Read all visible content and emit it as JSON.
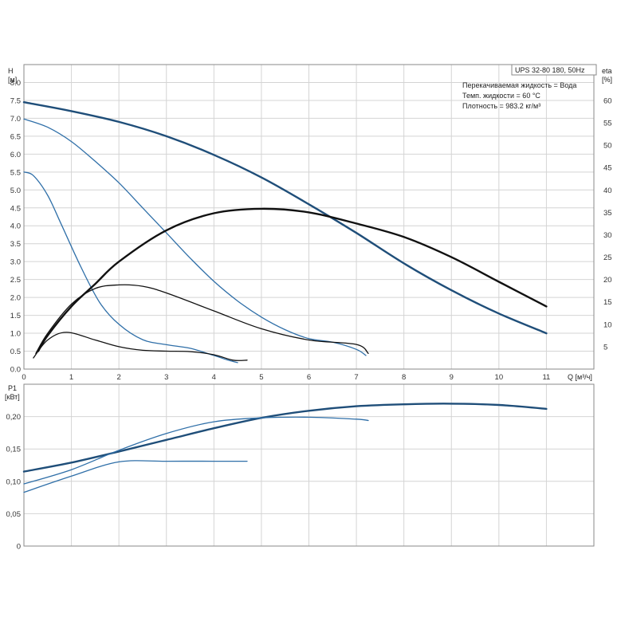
{
  "chart_data": [
    {
      "type": "line",
      "panel": "head-efficiency",
      "title_box": "UPS 32-80 180, 50Hz",
      "notes": [
        "Перекачиваемая жидкость = Вода",
        "Темп. жидкости = 60 °C",
        "Плотность = 983.2 кг/м³"
      ],
      "ylabel": [
        "H",
        "[м]"
      ],
      "y2label": [
        "eta",
        "[%]"
      ],
      "xlabel": "Q [м³/ч]",
      "xlim": [
        0,
        12
      ],
      "ylim": [
        0,
        8.5
      ],
      "y2lim": [
        0,
        68
      ],
      "xticks": [
        "0",
        "1",
        "2",
        "3",
        "4",
        "5",
        "6",
        "7",
        "8",
        "9",
        "10",
        "11"
      ],
      "yticks": [
        "0.0",
        "0.5",
        "1.0",
        "1.5",
        "2.0",
        "2.5",
        "3.0",
        "3.5",
        "4.0",
        "4.5",
        "5.0",
        "5.5",
        "6.0",
        "6.5",
        "7.0",
        "7.5",
        "8.0"
      ],
      "y2ticks": [
        "5",
        "10",
        "15",
        "20",
        "25",
        "30",
        "35",
        "40",
        "45",
        "50",
        "55",
        "60"
      ],
      "grid": true,
      "series": [
        {
          "axis": "H",
          "color": "#1f4e79",
          "width": 2.4,
          "points": [
            [
              0,
              7.45
            ],
            [
              1,
              7.2
            ],
            [
              2,
              6.9
            ],
            [
              3,
              6.5
            ],
            [
              4,
              5.98
            ],
            [
              5,
              5.35
            ],
            [
              6,
              4.6
            ],
            [
              7,
              3.8
            ],
            [
              8,
              2.95
            ],
            [
              9,
              2.2
            ],
            [
              10,
              1.55
            ],
            [
              11,
              1.0
            ]
          ]
        },
        {
          "axis": "H",
          "color": "#2f6fa8",
          "width": 1.3,
          "points": [
            [
              0,
              6.98
            ],
            [
              0.5,
              6.75
            ],
            [
              1,
              6.35
            ],
            [
              1.5,
              5.8
            ],
            [
              2,
              5.2
            ],
            [
              2.5,
              4.5
            ],
            [
              3,
              3.8
            ],
            [
              3.5,
              3.1
            ],
            [
              4,
              2.45
            ],
            [
              4.5,
              1.9
            ],
            [
              5,
              1.45
            ],
            [
              5.5,
              1.1
            ],
            [
              6,
              0.85
            ],
            [
              6.5,
              0.75
            ],
            [
              7,
              0.55
            ],
            [
              7.2,
              0.38
            ]
          ]
        },
        {
          "axis": "H",
          "color": "#2f6fa8",
          "width": 1.3,
          "points": [
            [
              0,
              5.5
            ],
            [
              0.2,
              5.4
            ],
            [
              0.5,
              4.85
            ],
            [
              0.8,
              4.0
            ],
            [
              1.2,
              2.85
            ],
            [
              1.6,
              1.85
            ],
            [
              2,
              1.25
            ],
            [
              2.5,
              0.82
            ],
            [
              3,
              0.68
            ],
            [
              3.5,
              0.58
            ],
            [
              4,
              0.38
            ],
            [
              4.3,
              0.25
            ],
            [
              4.5,
              0.18
            ]
          ]
        },
        {
          "axis": "eta",
          "color": "#111111",
          "width": 2.4,
          "points": [
            [
              0.3,
              4
            ],
            [
              0.5,
              7.5
            ],
            [
              1,
              14
            ],
            [
              1.5,
              19
            ],
            [
              2,
              24
            ],
            [
              3,
              31
            ],
            [
              4,
              34.8
            ],
            [
              5,
              35.8
            ],
            [
              6,
              35
            ],
            [
              7,
              32.5
            ],
            [
              8,
              29.5
            ],
            [
              9,
              25
            ],
            [
              10,
              19.5
            ],
            [
              11,
              14
            ]
          ]
        },
        {
          "axis": "eta",
          "color": "#111111",
          "width": 1.3,
          "points": [
            [
              0.25,
              3.5
            ],
            [
              0.5,
              8
            ],
            [
              1,
              14.5
            ],
            [
              1.5,
              18
            ],
            [
              2,
              18.8
            ],
            [
              2.5,
              18.5
            ],
            [
              3,
              17
            ],
            [
              4,
              13
            ],
            [
              5,
              9
            ],
            [
              6,
              6.5
            ],
            [
              7,
              5.5
            ],
            [
              7.25,
              3.5
            ]
          ]
        },
        {
          "axis": "eta",
          "color": "#111111",
          "width": 1.3,
          "points": [
            [
              0.2,
              2.5
            ],
            [
              0.5,
              6.5
            ],
            [
              0.9,
              8.2
            ],
            [
              1.5,
              6.5
            ],
            [
              2,
              5
            ],
            [
              2.5,
              4.2
            ],
            [
              3,
              4
            ],
            [
              3.5,
              3.9
            ],
            [
              4,
              3.2
            ],
            [
              4.4,
              2.0
            ],
            [
              4.7,
              2.0
            ]
          ]
        }
      ]
    },
    {
      "type": "line",
      "panel": "power",
      "ylabel": [
        "P1",
        "[кВт]"
      ],
      "xlim": [
        0,
        12
      ],
      "ylim": [
        0,
        0.25
      ],
      "yticks": [
        "0",
        "0,05",
        "0,10",
        "0,15",
        "0,20"
      ],
      "grid": true,
      "series": [
        {
          "color": "#1f4e79",
          "width": 2.4,
          "points": [
            [
              0,
              0.115
            ],
            [
              1,
              0.129
            ],
            [
              2,
              0.146
            ],
            [
              3,
              0.164
            ],
            [
              4,
              0.182
            ],
            [
              5,
              0.198
            ],
            [
              6,
              0.209
            ],
            [
              7,
              0.216
            ],
            [
              8,
              0.219
            ],
            [
              9,
              0.22
            ],
            [
              10,
              0.218
            ],
            [
              11,
              0.212
            ]
          ]
        },
        {
          "color": "#2f6fa8",
          "width": 1.3,
          "points": [
            [
              0,
              0.096
            ],
            [
              1,
              0.118
            ],
            [
              2,
              0.148
            ],
            [
              3,
              0.174
            ],
            [
              4,
              0.192
            ],
            [
              5,
              0.198
            ],
            [
              6,
              0.199
            ],
            [
              7,
              0.196
            ],
            [
              7.25,
              0.194
            ]
          ]
        },
        {
          "color": "#2f6fa8",
          "width": 1.3,
          "points": [
            [
              0,
              0.083
            ],
            [
              1,
              0.108
            ],
            [
              2,
              0.13
            ],
            [
              3,
              0.131
            ],
            [
              4,
              0.131
            ],
            [
              4.7,
              0.131
            ]
          ]
        }
      ]
    }
  ]
}
